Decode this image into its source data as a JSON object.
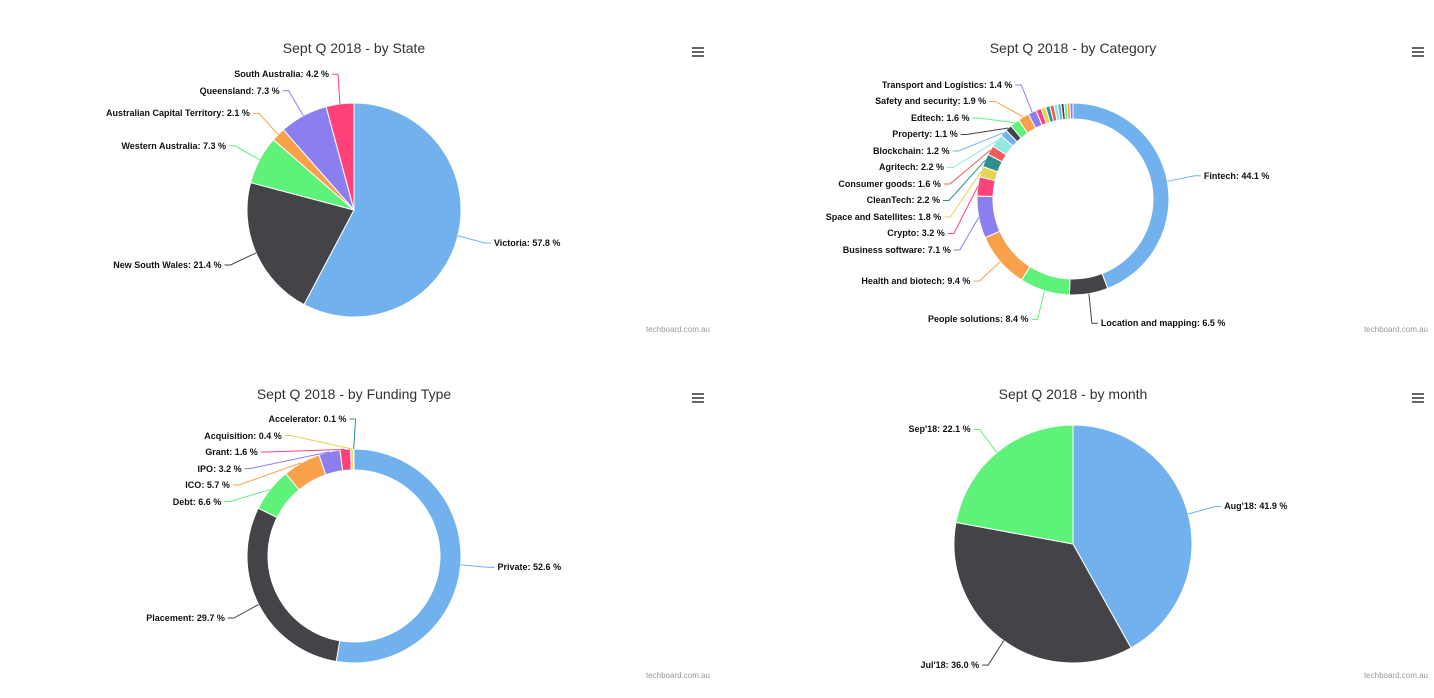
{
  "chart_data": [
    {
      "type": "pie",
      "title": "Sept Q 2018 - by State",
      "credits": "techboard.com.au",
      "categories": [
        "Victoria",
        "New South Wales",
        "Western Australia",
        "Australian Capital Territory",
        "Queensland",
        "South Australia"
      ],
      "values": [
        57.8,
        21.4,
        7.3,
        2.1,
        7.3,
        4.2
      ],
      "value_labels": [
        "57.8 %",
        "21.4 %",
        "7.3 %",
        "2.1 %",
        "7.3 %",
        "4.2 %"
      ],
      "colors": [
        "#71b2ee",
        "#434348",
        "#5ff27a",
        "#f9a04a",
        "#8b7ff0",
        "#ff4378"
      ]
    },
    {
      "type": "donut",
      "title": "Sept Q 2018 - by Category",
      "credits": "techboard.com.au",
      "categories": [
        "Fintech",
        "Location and mapping",
        "People solutions",
        "Health and biotech",
        "Business software",
        "Crypto",
        "Space and Satellites",
        "CleanTech",
        "Consumer goods",
        "Agritech",
        "Blockchain",
        "Property",
        "Edtech",
        "Safety and security",
        "Transport and Logistics",
        null,
        null,
        null,
        null,
        null,
        null,
        null,
        null,
        null,
        null
      ],
      "values": [
        44.1,
        6.5,
        8.4,
        9.4,
        7.1,
        3.2,
        1.8,
        2.2,
        1.6,
        2.2,
        1.2,
        1.1,
        1.6,
        1.9,
        1.4,
        0.9,
        0.8,
        0.7,
        0.7,
        0.6,
        0.6,
        0.5,
        0.5,
        0.5,
        0.5
      ],
      "value_labels": [
        "44.1 %",
        "6.5 %",
        "8.4 %",
        "9.4 %",
        "7.1 %",
        "3.2 %",
        "1.8 %",
        "2.2 %",
        "1.6 %",
        "2.2 %",
        "1.2 %",
        "1.1 %",
        "1.6 %",
        "1.9 %",
        "1.4 %",
        null,
        null,
        null,
        null,
        null,
        null,
        null,
        null,
        null,
        null
      ],
      "colors": [
        "#71b2ee",
        "#434348",
        "#5ff27a",
        "#f9a04a",
        "#8b7ff0",
        "#ff4378",
        "#e4d354",
        "#2b908f",
        "#f45b5b",
        "#91e8e1",
        "#71b2ee",
        "#434348",
        "#5ff27a",
        "#f9a04a",
        "#8b7ff0",
        "#ff4378",
        "#e4d354",
        "#2b908f",
        "#f45b5b",
        "#91e8e1",
        "#71b2ee",
        "#434348",
        "#5ff27a",
        "#f9a04a",
        "#8b7ff0"
      ]
    },
    {
      "type": "donut",
      "title": "Sept Q 2018 - by Funding Type",
      "credits": "techboard.com.au",
      "categories": [
        "Private",
        "Placement",
        "Debt",
        "ICO",
        "IPO",
        "Grant",
        "Acquisition",
        "Accelerator"
      ],
      "values": [
        52.6,
        29.7,
        6.6,
        5.7,
        3.2,
        1.6,
        0.4,
        0.1
      ],
      "value_labels": [
        "52.6 %",
        "29.7 %",
        "6.6 %",
        "5.7 %",
        "3.2 %",
        "1.6 %",
        "0.4 %",
        "0.1 %"
      ],
      "colors": [
        "#71b2ee",
        "#434348",
        "#5ff27a",
        "#f9a04a",
        "#8b7ff0",
        "#ff4378",
        "#e4d354",
        "#2b908f"
      ]
    },
    {
      "type": "pie",
      "title": "Sept Q 2018 - by month",
      "credits": "techboard.com.au",
      "categories": [
        "Aug'18",
        "Jul'18",
        "Sep'18"
      ],
      "values": [
        41.9,
        36.0,
        22.1
      ],
      "value_labels": [
        "41.9 %",
        "36.0 %",
        "22.1 %"
      ],
      "colors": [
        "#71b2ee",
        "#434348",
        "#5ff27a"
      ]
    }
  ]
}
